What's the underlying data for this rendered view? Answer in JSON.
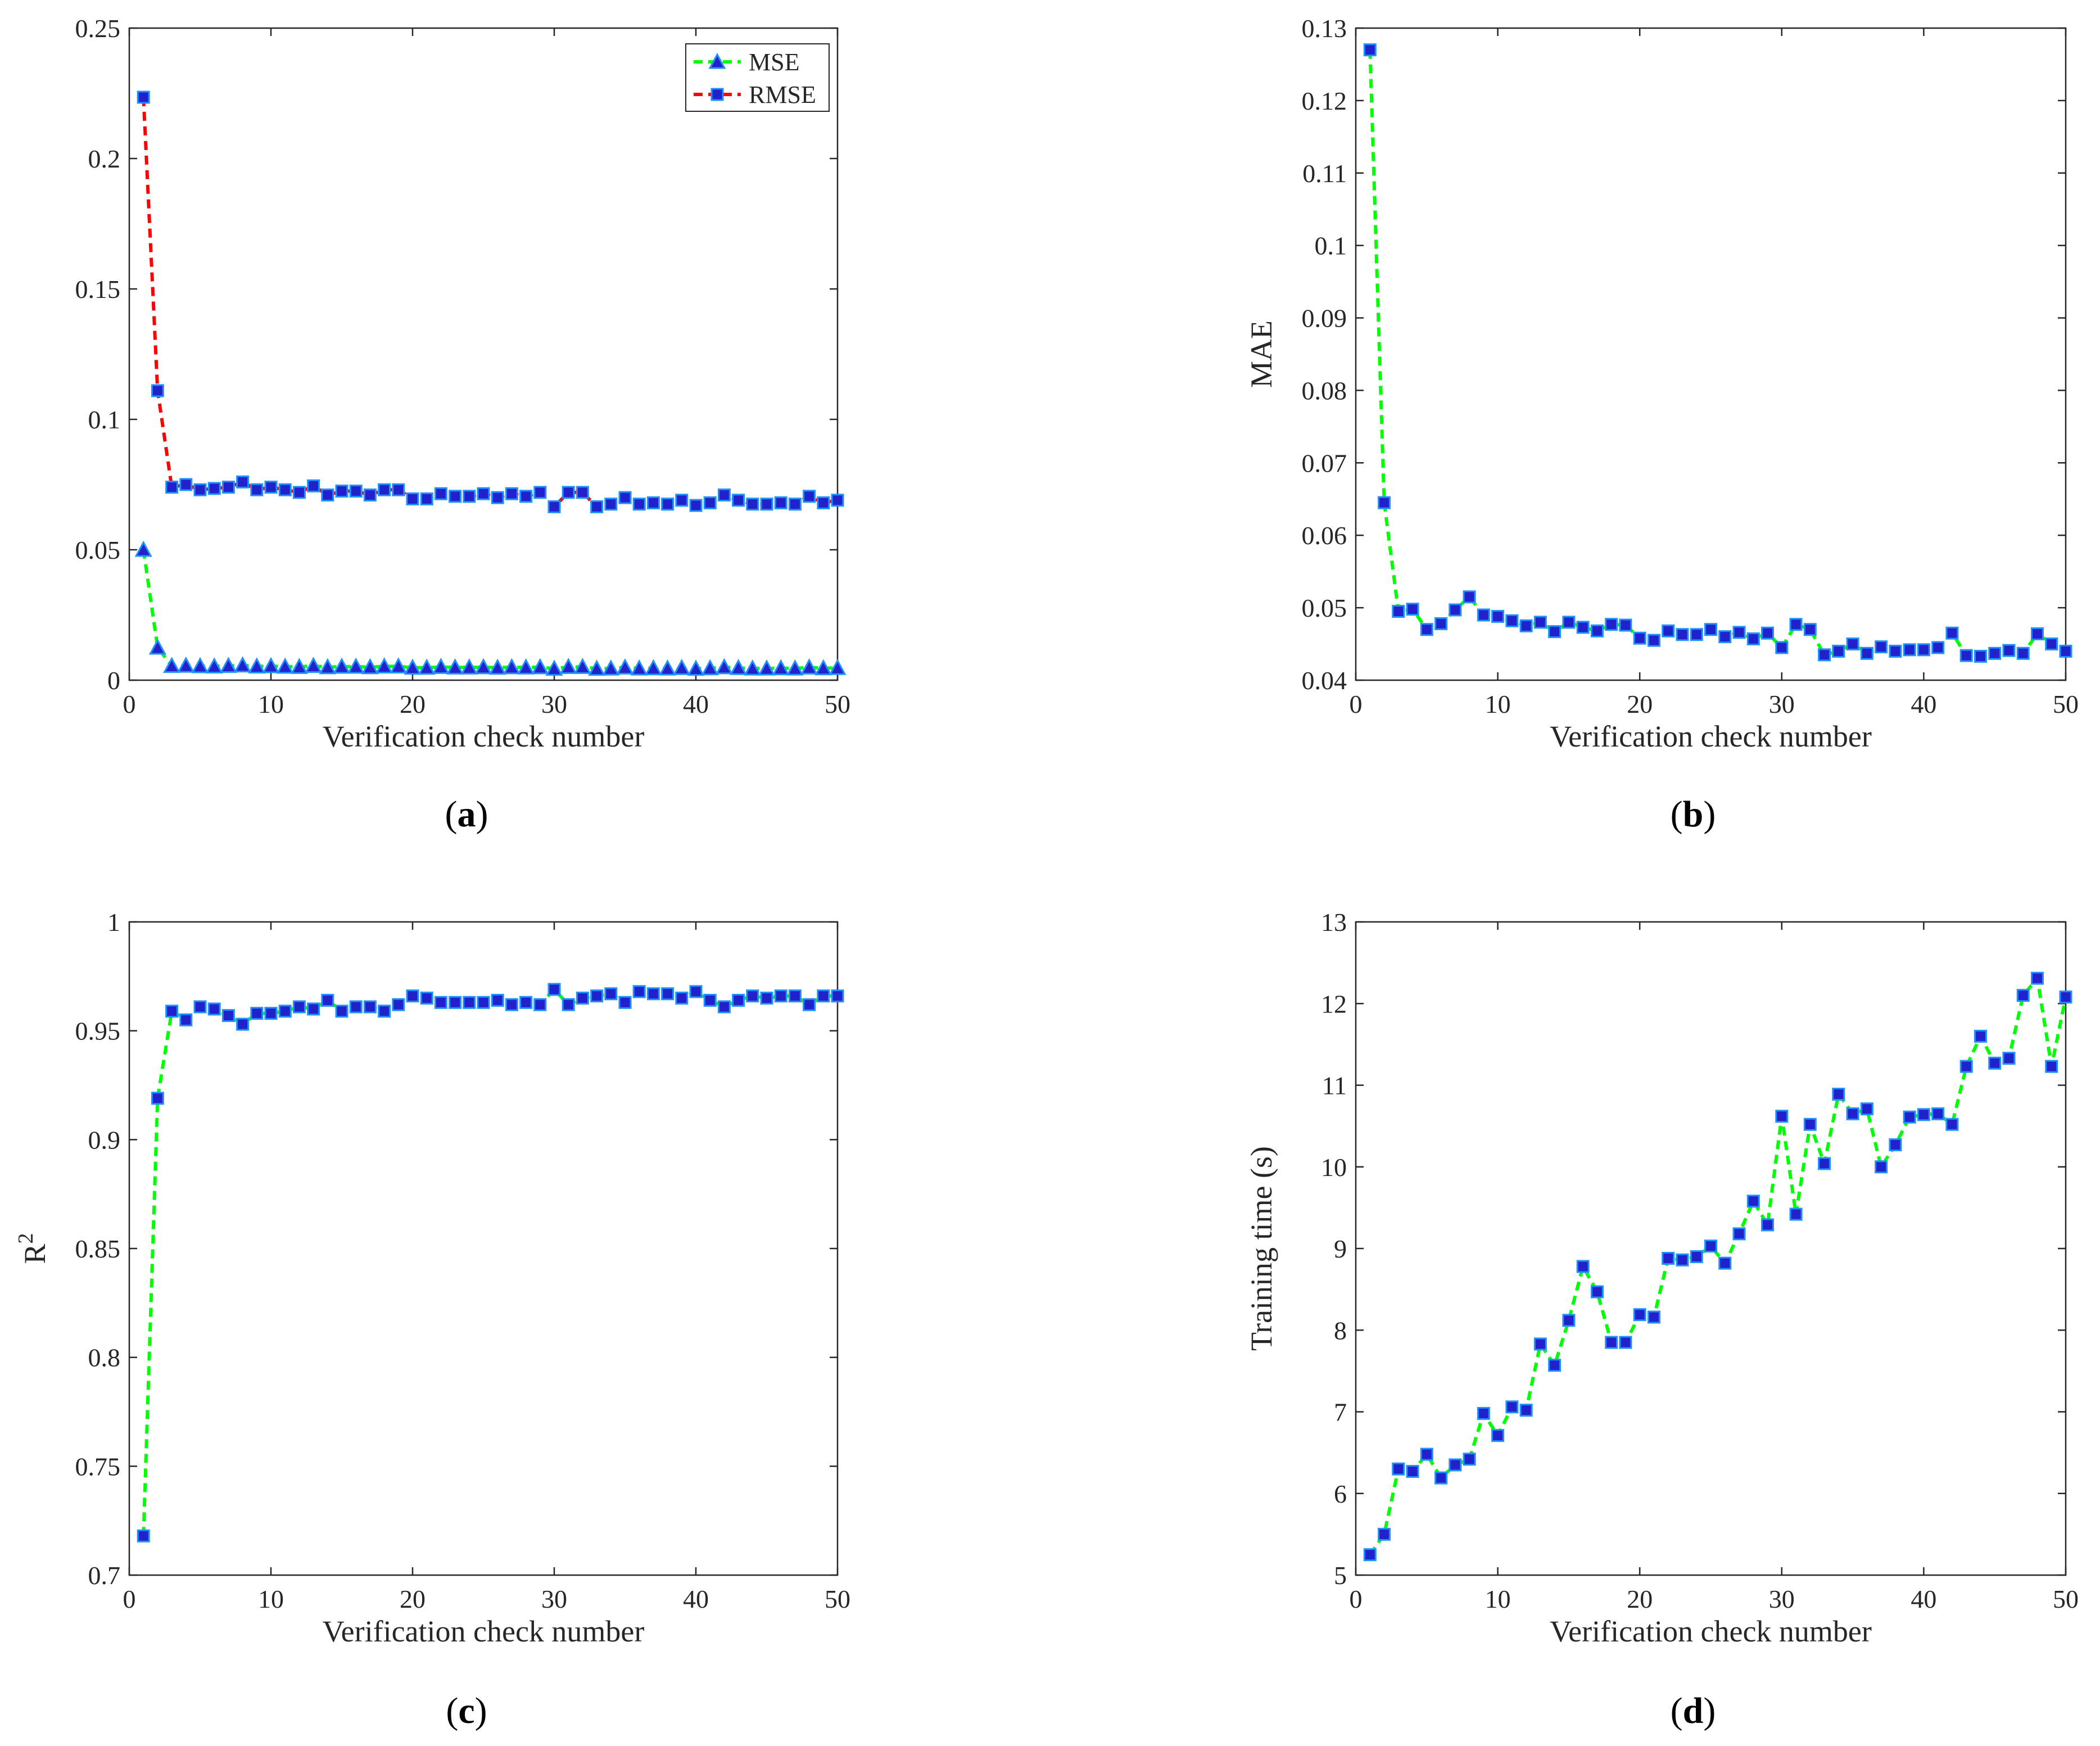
{
  "colors": {
    "green_line": "#00ff00",
    "red_line": "#ff0000",
    "marker_fill": "#2222cc",
    "marker_edge": "#1e90ff",
    "axis": "#262626"
  },
  "chart_data": [
    {
      "id": "a",
      "type": "line",
      "caption_letter": "a",
      "xlabel": "Verification check number",
      "ylabel": "",
      "xlim": [
        0,
        50
      ],
      "ylim": [
        0,
        0.25
      ],
      "xticks": [
        0,
        10,
        20,
        30,
        40,
        50
      ],
      "yticks": [
        0,
        0.05,
        0.1,
        0.15,
        0.2,
        0.25
      ],
      "ytick_labels": [
        "0",
        "0.05",
        "0.1",
        "0.15",
        "0.2",
        "0.25"
      ],
      "legend_position": "top-right",
      "series": [
        {
          "name": "MSE",
          "line_color": "green",
          "marker": "triangle",
          "values": [
            0.05,
            0.0125,
            0.0055,
            0.0056,
            0.0054,
            0.0053,
            0.0055,
            0.0057,
            0.0053,
            0.0054,
            0.0052,
            0.0051,
            0.0055,
            0.005,
            0.0052,
            0.0052,
            0.005,
            0.0053,
            0.0053,
            0.0048,
            0.0048,
            0.0051,
            0.0049,
            0.0049,
            0.005,
            0.0048,
            0.005,
            0.0049,
            0.005,
            0.0044,
            0.0051,
            0.0051,
            0.0044,
            0.0045,
            0.0049,
            0.0045,
            0.0046,
            0.0045,
            0.0047,
            0.0044,
            0.0046,
            0.005,
            0.0047,
            0.0045,
            0.0045,
            0.0046,
            0.0045,
            0.0049,
            0.0046,
            0.0047
          ]
        },
        {
          "name": "RMSE",
          "line_color": "red",
          "marker": "square",
          "values": [
            0.2235,
            0.111,
            0.074,
            0.075,
            0.073,
            0.0735,
            0.074,
            0.076,
            0.073,
            0.074,
            0.073,
            0.072,
            0.0745,
            0.071,
            0.0725,
            0.0725,
            0.071,
            0.073,
            0.073,
            0.0695,
            0.0695,
            0.0715,
            0.0705,
            0.0705,
            0.0715,
            0.07,
            0.0715,
            0.0705,
            0.072,
            0.0665,
            0.072,
            0.072,
            0.0665,
            0.0675,
            0.07,
            0.0675,
            0.068,
            0.0675,
            0.069,
            0.067,
            0.068,
            0.071,
            0.069,
            0.0675,
            0.0675,
            0.068,
            0.0675,
            0.0705,
            0.068,
            0.069
          ]
        }
      ]
    },
    {
      "id": "b",
      "type": "line",
      "caption_letter": "b",
      "xlabel": "Verification check number",
      "ylabel": "MAE",
      "xlim": [
        0,
        50
      ],
      "ylim": [
        0.04,
        0.13
      ],
      "xticks": [
        0,
        10,
        20,
        30,
        40,
        50
      ],
      "yticks": [
        0.04,
        0.05,
        0.06,
        0.07,
        0.08,
        0.09,
        0.1,
        0.11,
        0.12,
        0.13
      ],
      "ytick_labels": [
        "0.04",
        "0.05",
        "0.06",
        "0.07",
        "0.08",
        "0.09",
        "0.1",
        "0.11",
        "0.12",
        "0.13"
      ],
      "series": [
        {
          "name": "MAE",
          "line_color": "green",
          "marker": "square",
          "values": [
            0.127,
            0.0645,
            0.0495,
            0.0498,
            0.047,
            0.0478,
            0.0497,
            0.0515,
            0.049,
            0.0488,
            0.0482,
            0.0475,
            0.048,
            0.0467,
            0.048,
            0.0473,
            0.0468,
            0.0477,
            0.0476,
            0.0458,
            0.0455,
            0.0468,
            0.0463,
            0.0463,
            0.047,
            0.046,
            0.0466,
            0.0457,
            0.0465,
            0.0445,
            0.0477,
            0.047,
            0.0435,
            0.044,
            0.045,
            0.0437,
            0.0446,
            0.044,
            0.0442,
            0.0442,
            0.0445,
            0.0465,
            0.0434,
            0.0433,
            0.0437,
            0.0441,
            0.0437,
            0.0464,
            0.045,
            0.044
          ]
        }
      ]
    },
    {
      "id": "c",
      "type": "line",
      "caption_letter": "c",
      "xlabel": "Verification check number",
      "ylabel": "R",
      "ylabel_superscript": "2",
      "xlim": [
        0,
        50
      ],
      "ylim": [
        0.7,
        1
      ],
      "xticks": [
        0,
        10,
        20,
        30,
        40,
        50
      ],
      "yticks": [
        0.7,
        0.75,
        0.8,
        0.85,
        0.9,
        0.95,
        1
      ],
      "ytick_labels": [
        "0.7",
        "0.75",
        "0.8",
        "0.85",
        "0.9",
        "0.95",
        "1"
      ],
      "series": [
        {
          "name": "R2",
          "line_color": "green",
          "marker": "square",
          "values": [
            0.718,
            0.919,
            0.959,
            0.955,
            0.961,
            0.96,
            0.957,
            0.953,
            0.958,
            0.958,
            0.959,
            0.961,
            0.96,
            0.964,
            0.959,
            0.961,
            0.961,
            0.959,
            0.962,
            0.966,
            0.965,
            0.963,
            0.963,
            0.963,
            0.963,
            0.964,
            0.962,
            0.963,
            0.962,
            0.969,
            0.962,
            0.965,
            0.966,
            0.967,
            0.963,
            0.968,
            0.967,
            0.967,
            0.965,
            0.968,
            0.964,
            0.961,
            0.964,
            0.966,
            0.965,
            0.966,
            0.966,
            0.962,
            0.966,
            0.966
          ]
        }
      ]
    },
    {
      "id": "d",
      "type": "line",
      "caption_letter": "d",
      "xlabel": "Verification check number",
      "ylabel": "Training time (s)",
      "xlim": [
        0,
        50
      ],
      "ylim": [
        5,
        13
      ],
      "xticks": [
        0,
        10,
        20,
        30,
        40,
        50
      ],
      "yticks": [
        5,
        6,
        7,
        8,
        9,
        10,
        11,
        12,
        13
      ],
      "ytick_labels": [
        "5",
        "6",
        "7",
        "8",
        "9",
        "10",
        "11",
        "12",
        "13"
      ],
      "series": [
        {
          "name": "Training time",
          "line_color": "green",
          "marker": "square",
          "values": [
            5.25,
            5.5,
            6.3,
            6.27,
            6.48,
            6.19,
            6.35,
            6.42,
            6.98,
            6.71,
            7.06,
            7.02,
            7.83,
            7.57,
            8.12,
            8.78,
            8.47,
            7.85,
            7.85,
            8.19,
            8.16,
            8.88,
            8.86,
            8.9,
            9.03,
            8.82,
            9.18,
            9.58,
            9.29,
            10.62,
            9.42,
            10.52,
            10.04,
            10.89,
            10.65,
            10.71,
            10.0,
            10.27,
            10.61,
            10.64,
            10.65,
            10.52,
            11.23,
            11.6,
            11.27,
            11.33,
            12.1,
            12.31,
            11.23,
            12.08
          ]
        }
      ]
    }
  ]
}
